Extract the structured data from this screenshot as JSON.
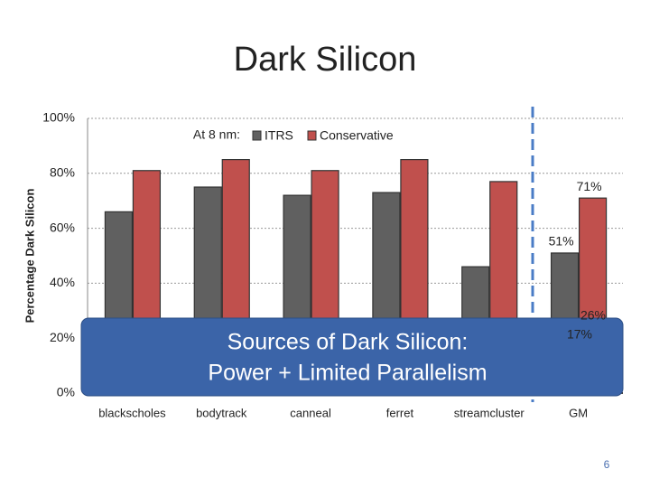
{
  "chart_data": {
    "type": "bar",
    "title": "Dark Silicon",
    "y_label": "Percentage Dark Silicon",
    "legend_title": "At 8 nm:",
    "categories": [
      "blackscholes",
      "bodytrack",
      "canneal",
      "ferret",
      "streamcluster",
      "GM"
    ],
    "series": [
      {
        "name": "ITRS",
        "color": "#606060",
        "values": [
          66,
          75,
          72,
          73,
          46,
          51
        ],
        "value_labels": [
          null,
          null,
          null,
          null,
          null,
          "51%"
        ]
      },
      {
        "name": "Conservative",
        "color": "#c0504d",
        "values": [
          81,
          85,
          81,
          85,
          77,
          71
        ],
        "value_labels": [
          null,
          null,
          null,
          null,
          null,
          "71%"
        ]
      }
    ],
    "ylim": [
      0,
      100
    ],
    "yticks": [
      {
        "value": 0,
        "label": "0%"
      },
      {
        "value": 20,
        "label": "20%"
      },
      {
        "value": 40,
        "label": "40%"
      },
      {
        "value": 60,
        "label": "60%"
      },
      {
        "value": 80,
        "label": "80%"
      },
      {
        "value": 100,
        "label": "100%"
      }
    ],
    "grid": true,
    "annotations": [
      "17%",
      "26%"
    ],
    "overlay": [
      "Sources of Dark Silicon:",
      "Power + Limited Parallelism"
    ]
  },
  "slide_number": "6"
}
